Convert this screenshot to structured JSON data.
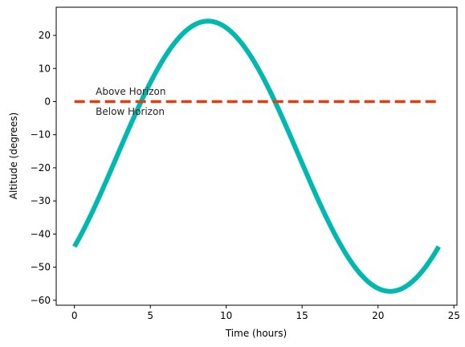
{
  "chart_data": {
    "type": "line",
    "title": "",
    "xlabel": "Time (hours)",
    "ylabel": "Altitude (degrees)",
    "xlim": [
      -1.2,
      25.2
    ],
    "ylim": [
      -61.5,
      28.5
    ],
    "xticks": [
      0,
      5,
      10,
      15,
      20,
      25
    ],
    "yticks": [
      -60,
      -50,
      -40,
      -30,
      -20,
      -10,
      0,
      10,
      20
    ],
    "grid": false,
    "series": [
      {
        "name": "",
        "style": "solid",
        "color": "#00b8b0",
        "curve": {
          "form": "sinusoid",
          "center": -16.5,
          "amplitude": 40.8,
          "period_hours": 24,
          "peak_time_hours": 8.8
        },
        "x": [
          0,
          2,
          4,
          6,
          8,
          8.8,
          10,
          12,
          13.3,
          14,
          16,
          18,
          20,
          20.8,
          22,
          24
        ],
        "y": [
          -40.2,
          -22.3,
          -1.8,
          16.2,
          23.6,
          24.3,
          22.3,
          11.4,
          -0.2,
          -7.4,
          -30.5,
          -49.6,
          -56.9,
          -57.3,
          -55.6,
          -40.2
        ]
      },
      {
        "name": "",
        "style": "dashed",
        "color": "#e03d10",
        "x": [
          0,
          24
        ],
        "y": [
          0,
          0
        ]
      }
    ],
    "annotations": [
      {
        "text": "Above Horizon",
        "x": 1.4,
        "y": 2.0
      },
      {
        "text": "Below Horizon",
        "x": 1.4,
        "y": -4.0
      }
    ]
  }
}
